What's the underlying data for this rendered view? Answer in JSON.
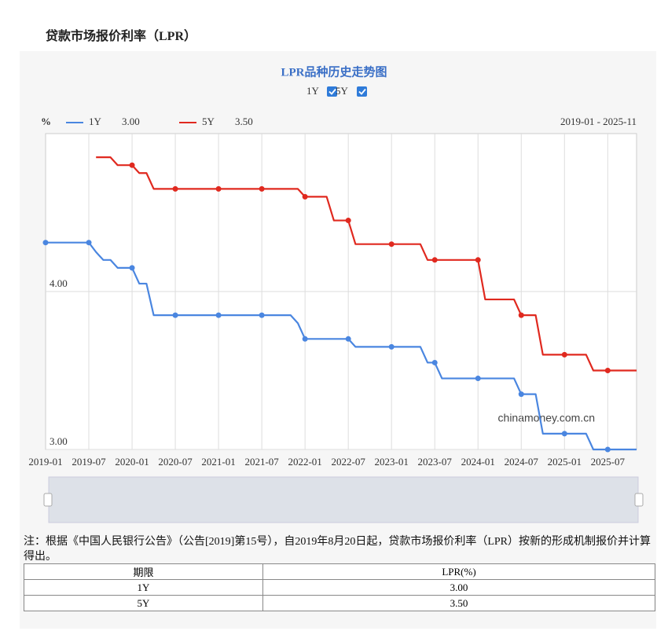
{
  "header": {
    "title": "贷款市场报价利率（LPR）"
  },
  "chart_data": {
    "type": "line",
    "title": "LPR品种历史走势图",
    "y_unit": "%",
    "date_range": "2019-01 - 2025-11",
    "watermark": "chinamoney.com.cn",
    "categories": [
      "2019-01",
      null,
      null,
      null,
      null,
      null,
      "2019-07",
      null,
      null,
      null,
      null,
      null,
      "2020-01",
      null,
      null,
      null,
      null,
      null,
      "2020-07",
      null,
      null,
      null,
      null,
      null,
      "2021-01",
      null,
      null,
      null,
      null,
      null,
      "2021-07",
      null,
      null,
      null,
      null,
      null,
      "2022-01",
      null,
      null,
      null,
      null,
      null,
      "2022-07",
      null,
      null,
      null,
      null,
      null,
      "2023-01",
      null,
      null,
      null,
      null,
      null,
      "2023-07",
      null,
      null,
      null,
      null,
      null,
      "2024-01",
      null,
      null,
      null,
      null,
      null,
      "2024-07",
      null,
      null,
      null,
      null,
      null,
      "2025-01",
      null,
      null,
      null,
      null,
      null,
      "2025-07",
      null,
      null,
      null,
      null
    ],
    "series": [
      {
        "name": "1Y",
        "color": "#4a86e0",
        "latest_label": "3.00",
        "values": [
          4.31,
          4.31,
          4.31,
          4.31,
          4.31,
          4.31,
          4.31,
          4.25,
          4.2,
          4.2,
          4.15,
          4.15,
          4.15,
          4.05,
          4.05,
          3.85,
          3.85,
          3.85,
          3.85,
          3.85,
          3.85,
          3.85,
          3.85,
          3.85,
          3.85,
          3.85,
          3.85,
          3.85,
          3.85,
          3.85,
          3.85,
          3.85,
          3.85,
          3.85,
          3.85,
          3.8,
          3.7,
          3.7,
          3.7,
          3.7,
          3.7,
          3.7,
          3.7,
          3.65,
          3.65,
          3.65,
          3.65,
          3.65,
          3.65,
          3.65,
          3.65,
          3.65,
          3.65,
          3.55,
          3.55,
          3.45,
          3.45,
          3.45,
          3.45,
          3.45,
          3.45,
          3.45,
          3.45,
          3.45,
          3.45,
          3.45,
          3.35,
          3.35,
          3.35,
          3.1,
          3.1,
          3.1,
          3.1,
          3.1,
          3.1,
          3.1,
          3,
          3,
          3,
          3,
          3,
          3,
          3
        ]
      },
      {
        "name": "5Y",
        "color": "#e0291f",
        "latest_label": "3.50",
        "values": [
          null,
          null,
          null,
          null,
          null,
          null,
          null,
          4.85,
          4.85,
          4.85,
          4.8,
          4.8,
          4.8,
          4.75,
          4.75,
          4.65,
          4.65,
          4.65,
          4.65,
          4.65,
          4.65,
          4.65,
          4.65,
          4.65,
          4.65,
          4.65,
          4.65,
          4.65,
          4.65,
          4.65,
          4.65,
          4.65,
          4.65,
          4.65,
          4.65,
          4.65,
          4.6,
          4.6,
          4.6,
          4.6,
          4.45,
          4.45,
          4.45,
          4.3,
          4.3,
          4.3,
          4.3,
          4.3,
          4.3,
          4.3,
          4.3,
          4.3,
          4.3,
          4.2,
          4.2,
          4.2,
          4.2,
          4.2,
          4.2,
          4.2,
          4.2,
          3.95,
          3.95,
          3.95,
          3.95,
          3.95,
          3.85,
          3.85,
          3.85,
          3.6,
          3.6,
          3.6,
          3.6,
          3.6,
          3.6,
          3.6,
          3.5,
          3.5,
          3.5,
          3.5,
          3.5,
          3.5,
          3.5
        ]
      }
    ],
    "ylim": [
      3,
      5
    ],
    "yticks": [
      {
        "value": 3,
        "label": "3.00"
      },
      {
        "value": 4,
        "label": "4.00"
      }
    ],
    "grid": true
  },
  "note": "注：根据《中国人民银行公告》（公告[2019]第15号），自2019年8月20日起，贷款市场报价利率（LPR）按新的形成机制报价并计算得出。",
  "table": {
    "header": [
      "期限",
      "LPR(%)"
    ],
    "rows": [
      [
        "1Y",
        "3.00"
      ],
      [
        "5Y",
        "3.50"
      ]
    ]
  }
}
